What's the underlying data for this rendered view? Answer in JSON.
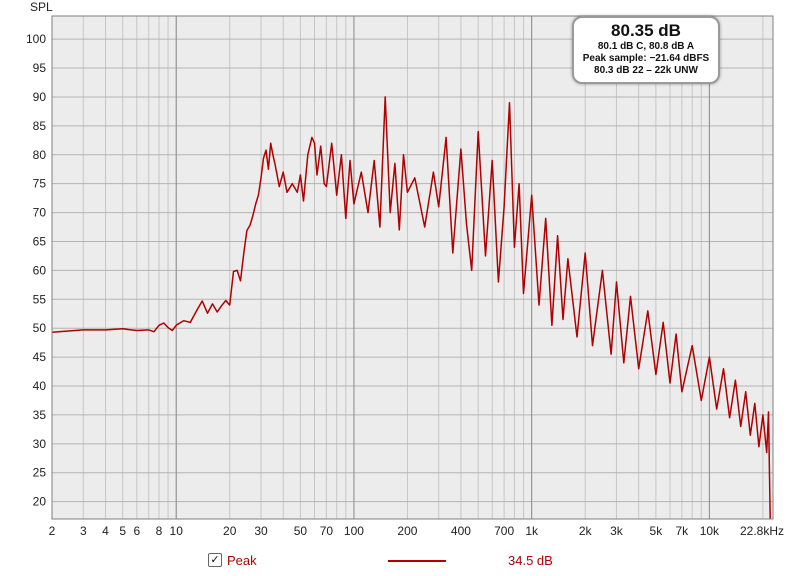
{
  "chart_data": {
    "type": "line",
    "ylabel": "SPL",
    "xunit": "kHz",
    "xscale": "log",
    "xlim": [
      2,
      22800
    ],
    "ylim": [
      17,
      104
    ],
    "yticks": [
      20,
      25,
      30,
      35,
      40,
      45,
      50,
      55,
      60,
      65,
      70,
      75,
      80,
      85,
      90,
      95,
      100
    ],
    "xticks": [
      {
        "v": 2,
        "label": "2"
      },
      {
        "v": 3,
        "label": "3"
      },
      {
        "v": 4,
        "label": "4"
      },
      {
        "v": 5,
        "label": "5"
      },
      {
        "v": 6,
        "label": "6"
      },
      {
        "v": 8,
        "label": "8"
      },
      {
        "v": 10,
        "label": "10"
      },
      {
        "v": 20,
        "label": "20"
      },
      {
        "v": 30,
        "label": "30"
      },
      {
        "v": 50,
        "label": "50"
      },
      {
        "v": 70,
        "label": "70"
      },
      {
        "v": 100,
        "label": "100"
      },
      {
        "v": 200,
        "label": "200"
      },
      {
        "v": 400,
        "label": "400"
      },
      {
        "v": 700,
        "label": "700"
      },
      {
        "v": 1000,
        "label": "1k"
      },
      {
        "v": 2000,
        "label": "2k"
      },
      {
        "v": 3000,
        "label": "3k"
      },
      {
        "v": 5000,
        "label": "5k"
      },
      {
        "v": 7000,
        "label": "7k"
      },
      {
        "v": 10000,
        "label": "10k"
      },
      {
        "v": 22800,
        "label": "22.8kHz"
      }
    ],
    "grid": true,
    "legend_position": "bottom",
    "series": [
      {
        "name": "Peak",
        "color": "#b00000",
        "x": [
          2,
          3,
          4,
          5,
          6,
          7,
          7.5,
          8,
          8.5,
          9,
          9.5,
          10,
          11,
          12,
          13,
          14,
          15,
          16,
          17,
          18,
          19,
          20,
          21,
          22,
          23,
          24,
          25,
          26,
          27,
          28,
          29,
          30,
          31,
          32,
          33,
          34,
          35,
          36,
          38,
          40,
          42,
          45,
          48,
          50,
          52,
          55,
          58,
          60,
          62,
          65,
          68,
          70,
          75,
          80,
          85,
          90,
          95,
          100,
          110,
          120,
          130,
          140,
          150,
          160,
          170,
          180,
          190,
          200,
          220,
          250,
          280,
          300,
          330,
          360,
          400,
          430,
          460,
          500,
          550,
          600,
          650,
          700,
          750,
          800,
          850,
          900,
          1000,
          1100,
          1200,
          1300,
          1400,
          1500,
          1600,
          1800,
          2000,
          2200,
          2500,
          2800,
          3000,
          3300,
          3600,
          4000,
          4500,
          5000,
          5500,
          6000,
          6500,
          7000,
          8000,
          9000,
          10000,
          11000,
          12000,
          13000,
          14000,
          15000,
          16000,
          17000,
          18000,
          19000,
          20000,
          21000,
          21500,
          22000
        ],
        "values": [
          49.3,
          49.7,
          49.7,
          49.9,
          49.6,
          49.7,
          49.4,
          50.5,
          50.9,
          50.1,
          49.6,
          50.5,
          51.3,
          51.0,
          53.0,
          54.7,
          52.6,
          54.2,
          52.8,
          53.9,
          54.8,
          54.0,
          59.8,
          60.0,
          58.2,
          63.0,
          66.9,
          67.8,
          69.5,
          71.5,
          73.0,
          76.0,
          79.4,
          80.8,
          77.5,
          82.0,
          80.0,
          78.3,
          74.5,
          77.0,
          73.5,
          75.0,
          73.5,
          76.5,
          72.0,
          80.0,
          83.0,
          82.0,
          76.5,
          81.5,
          75.0,
          74.5,
          82.0,
          73.0,
          80.0,
          69.0,
          79.0,
          71.5,
          77.0,
          70.0,
          79.0,
          67.5,
          90.0,
          70.0,
          78.5,
          67.0,
          80.0,
          73.5,
          76.0,
          67.5,
          77.0,
          71.0,
          83.0,
          63.0,
          81.0,
          68.0,
          60.0,
          84.0,
          62.5,
          79.0,
          58.0,
          71.0,
          89.0,
          64.0,
          75.0,
          56.0,
          73.0,
          54.0,
          69.0,
          50.5,
          66.0,
          51.5,
          62.0,
          48.5,
          63.0,
          47.0,
          60.0,
          45.5,
          58.0,
          44.0,
          55.5,
          43.0,
          53.0,
          42.0,
          51.0,
          40.5,
          49.0,
          39.0,
          47.0,
          37.5,
          45.0,
          36.0,
          43.0,
          34.5,
          41.0,
          33.0,
          39.0,
          31.5,
          37.0,
          29.5,
          35.0,
          28.5,
          35.5,
          17.0
        ]
      }
    ]
  },
  "readout": {
    "level": "80.35 dB",
    "weighted": "80.1 dB C, 80.8 dB A",
    "peak_sample": "Peak sample: −21.64 dBFS",
    "unweighted": "80.3 dB 22 – 22k UNW"
  },
  "legend": {
    "checkbox_mark": "✓",
    "series_label": "Peak",
    "series_value": "34.5 dB",
    "color": "#b00000"
  }
}
